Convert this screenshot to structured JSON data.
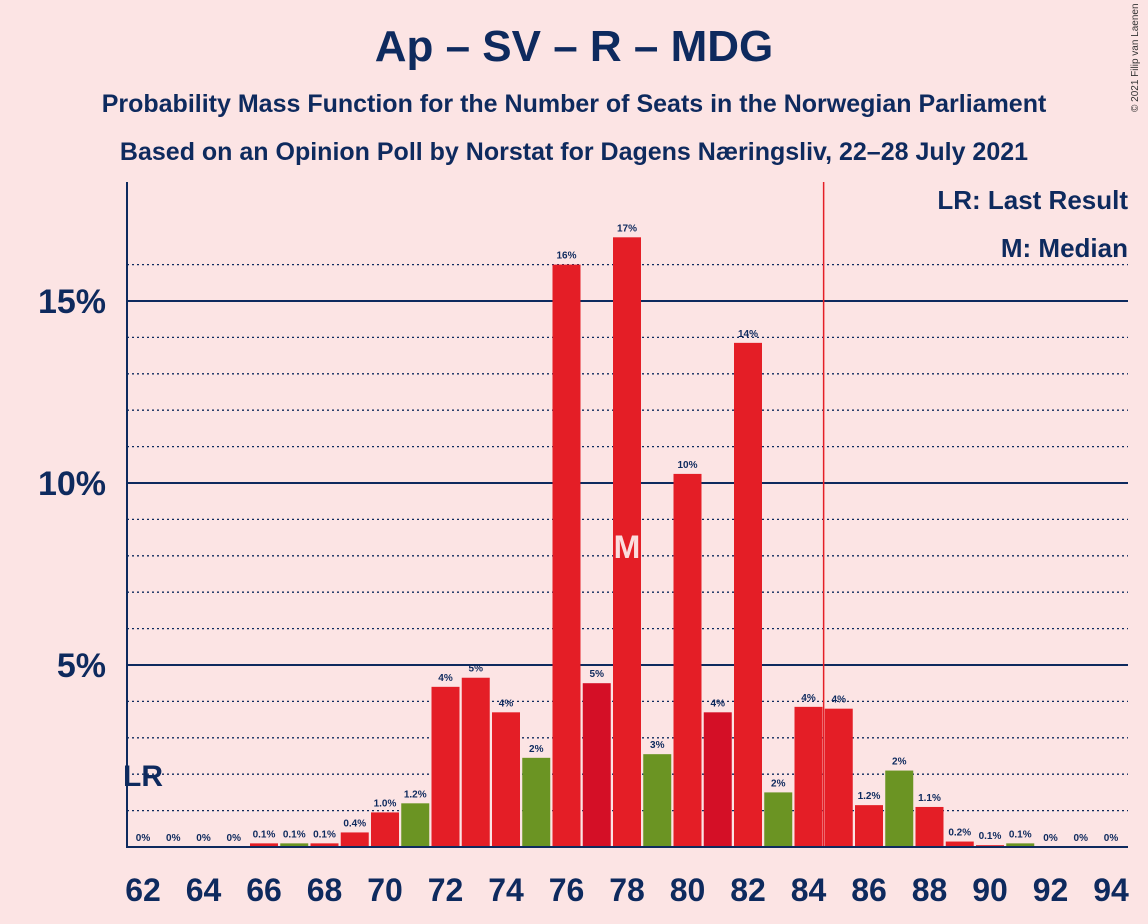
{
  "chart_data": {
    "type": "bar",
    "title": "Ap – SV – R – MDG",
    "subtitle": "Probability Mass Function for the Number of Seats in the Norwegian Parliament",
    "subtitle2": "Based on an Opinion Poll by Norstat for Dagens Næringsliv, 22–28 July 2021",
    "copyright": "© 2021 Filip van Laenen",
    "legend": {
      "lr": "LR: Last Result",
      "m": "M: Median"
    },
    "markers": {
      "last_result_label": "LR",
      "last_result_seat": 62,
      "median_label": "M",
      "median_seat": 78,
      "majority_line_seat": 84.5
    },
    "ylim": [
      0,
      18
    ],
    "y_ticks": [
      {
        "value": 5,
        "label": "5%"
      },
      {
        "value": 10,
        "label": "10%"
      },
      {
        "value": 15,
        "label": "15%"
      }
    ],
    "x_ticks": [
      62,
      64,
      66,
      68,
      70,
      72,
      74,
      76,
      78,
      80,
      82,
      84,
      86,
      88,
      90,
      92,
      94
    ],
    "colors": {
      "red": "#e41e26",
      "dark_red": "#d40f26",
      "green": "#6b9423",
      "axis": "#0e2a5e",
      "majority": "#e41e26"
    },
    "bars": [
      {
        "seat": 62,
        "value": 0,
        "label": "0%",
        "color": "red"
      },
      {
        "seat": 63,
        "value": 0,
        "label": "0%",
        "color": "red"
      },
      {
        "seat": 64,
        "value": 0,
        "label": "0%",
        "color": "red"
      },
      {
        "seat": 65,
        "value": 0,
        "label": "0%",
        "color": "red"
      },
      {
        "seat": 66,
        "value": 0.1,
        "label": "0.1%",
        "color": "red"
      },
      {
        "seat": 67,
        "value": 0.1,
        "label": "0.1%",
        "color": "green"
      },
      {
        "seat": 68,
        "value": 0.1,
        "label": "0.1%",
        "color": "red"
      },
      {
        "seat": 69,
        "value": 0.4,
        "label": "0.4%",
        "color": "red"
      },
      {
        "seat": 70,
        "value": 0.95,
        "label": "1.0%",
        "color": "red"
      },
      {
        "seat": 71,
        "value": 1.2,
        "label": "1.2%",
        "color": "green"
      },
      {
        "seat": 72,
        "value": 4.4,
        "label": "4%",
        "color": "red"
      },
      {
        "seat": 73,
        "value": 4.65,
        "label": "5%",
        "color": "red"
      },
      {
        "seat": 74,
        "value": 3.7,
        "label": "4%",
        "color": "red"
      },
      {
        "seat": 75,
        "value": 2.45,
        "label": "2%",
        "color": "green"
      },
      {
        "seat": 76,
        "value": 16.0,
        "label": "16%",
        "color": "red"
      },
      {
        "seat": 77,
        "value": 4.5,
        "label": "5%",
        "color": "dark_red"
      },
      {
        "seat": 78,
        "value": 16.75,
        "label": "17%",
        "color": "red"
      },
      {
        "seat": 79,
        "value": 2.55,
        "label": "3%",
        "color": "green"
      },
      {
        "seat": 80,
        "value": 10.25,
        "label": "10%",
        "color": "red"
      },
      {
        "seat": 81,
        "value": 3.7,
        "label": "4%",
        "color": "dark_red"
      },
      {
        "seat": 82,
        "value": 13.85,
        "label": "14%",
        "color": "red"
      },
      {
        "seat": 83,
        "value": 1.5,
        "label": "2%",
        "color": "green"
      },
      {
        "seat": 84,
        "value": 3.85,
        "label": "4%",
        "color": "red"
      },
      {
        "seat": 85,
        "value": 3.8,
        "label": "4%",
        "color": "red"
      },
      {
        "seat": 86,
        "value": 1.15,
        "label": "1.2%",
        "color": "red"
      },
      {
        "seat": 87,
        "value": 2.1,
        "label": "2%",
        "color": "green"
      },
      {
        "seat": 88,
        "value": 1.1,
        "label": "1.1%",
        "color": "red"
      },
      {
        "seat": 89,
        "value": 0.15,
        "label": "0.2%",
        "color": "red"
      },
      {
        "seat": 90,
        "value": 0.05,
        "label": "0.1%",
        "color": "red"
      },
      {
        "seat": 91,
        "value": 0.1,
        "label": "0.1%",
        "color": "green"
      },
      {
        "seat": 92,
        "value": 0,
        "label": "0%",
        "color": "red"
      },
      {
        "seat": 93,
        "value": 0,
        "label": "0%",
        "color": "red"
      },
      {
        "seat": 94,
        "value": 0,
        "label": "0%",
        "color": "red"
      }
    ]
  }
}
